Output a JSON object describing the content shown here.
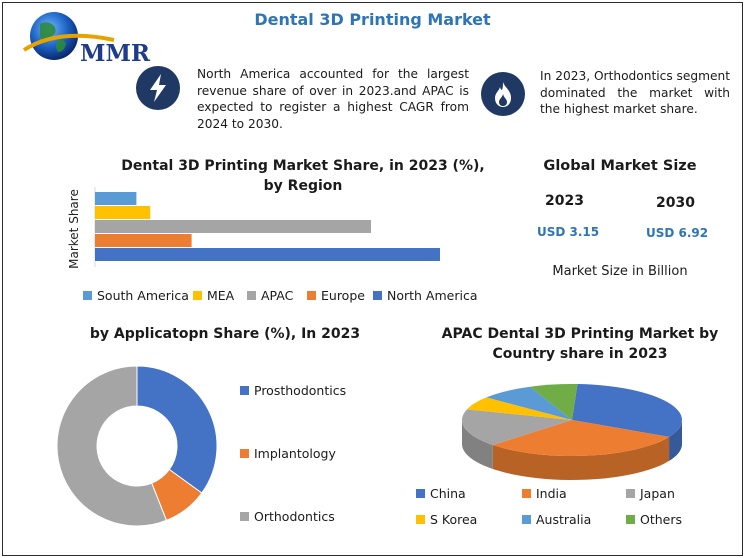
{
  "header": {
    "title": "Dental 3D Printing Market",
    "logo_text": "MMR"
  },
  "info": [
    {
      "icon": "lightning-bolt-icon",
      "text": "North America accounted for the largest revenue share of over in 2023.and APAC is expected to register a highest CAGR from 2024 to 2030."
    },
    {
      "icon": "flame-icon",
      "text": "In 2023, Orthodontics segment dominated the market with the highest market share."
    }
  ],
  "global_market": {
    "title": "Global Market Size",
    "year_1": "2023",
    "value_1": "USD 3.15",
    "year_2": "2030",
    "value_2": "USD 6.92",
    "note": "Market Size in Billion"
  },
  "chart_data": [
    {
      "type": "bar",
      "orientation": "horizontal",
      "title": "Dental 3D Printing Market Share, in 2023 (%), by Region",
      "ylabel": "Market Share",
      "categories": [
        "South America",
        "MEA",
        "APAC",
        "Europe",
        "North America"
      ],
      "values": [
        12,
        16,
        80,
        28,
        100
      ],
      "colors": [
        "#5b9bd5",
        "#ffc000",
        "#a5a5a5",
        "#ed7d31",
        "#4472c4"
      ],
      "legend_position": "bottom",
      "grid": false
    },
    {
      "type": "pie",
      "donut": true,
      "title": "by Applicatopn Share (%), In 2023",
      "categories": [
        "Prosthodontics",
        "Implantology",
        "Orthodontics"
      ],
      "values": [
        35,
        9,
        56
      ],
      "colors": [
        "#4472c4",
        "#ed7d31",
        "#a5a5a5"
      ],
      "legend_position": "right"
    },
    {
      "type": "pie",
      "3d": true,
      "title": "APAC Dental 3D Printing Market by Country share in 2023",
      "categories": [
        "China",
        "India",
        "Japan",
        "S Korea",
        "Australia",
        "Others"
      ],
      "values": [
        32,
        30,
        17,
        6,
        8,
        7
      ],
      "colors": [
        "#4472c4",
        "#ed7d31",
        "#a5a5a5",
        "#ffc000",
        "#5b9bd5",
        "#70ad47"
      ],
      "legend_position": "bottom"
    }
  ]
}
